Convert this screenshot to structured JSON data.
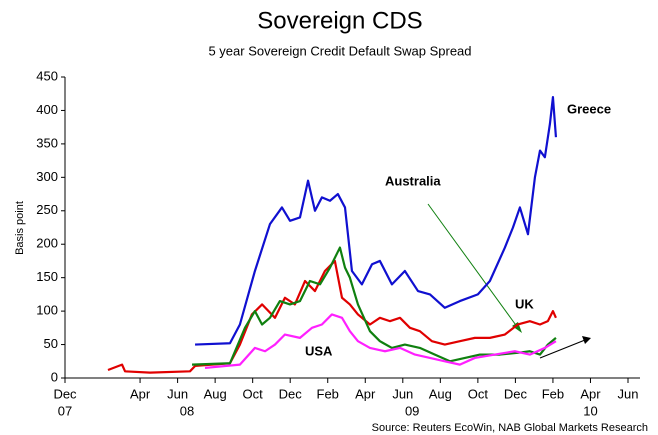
{
  "chart_data": {
    "type": "line",
    "title": "Sovereign CDS",
    "subtitle": "5 year Sovereign Credit Default Swap Spread",
    "y_label": "Basis point",
    "source": "Source: Reuters EcoWin, NAB Global Markets Research",
    "xlim": [
      0,
      30
    ],
    "xticks": [
      {
        "value": 0,
        "label": "Dec"
      },
      {
        "value": 4,
        "label": "Apr"
      },
      {
        "value": 6,
        "label": "Jun"
      },
      {
        "value": 8,
        "label": "Aug"
      },
      {
        "value": 10,
        "label": "Oct"
      },
      {
        "value": 12,
        "label": "Dec"
      },
      {
        "value": 14,
        "label": "Feb"
      },
      {
        "value": 16,
        "label": "Apr"
      },
      {
        "value": 18,
        "label": "Jun"
      },
      {
        "value": 20,
        "label": "Aug"
      },
      {
        "value": 22,
        "label": "Oct"
      },
      {
        "value": 24,
        "label": "Dec"
      },
      {
        "value": 26,
        "label": "Feb"
      },
      {
        "value": 28,
        "label": "Apr"
      },
      {
        "value": 30,
        "label": "Jun"
      }
    ],
    "year_labels": [
      {
        "value": 0,
        "label": "07"
      },
      {
        "value": 6.5,
        "label": "08"
      },
      {
        "value": 18.5,
        "label": "09"
      },
      {
        "value": 28,
        "label": "10"
      }
    ],
    "ylim": [
      0,
      450
    ],
    "yticks": [
      0,
      50,
      100,
      150,
      200,
      250,
      300,
      350,
      400,
      450
    ],
    "grid": false,
    "series": [
      {
        "name": "Greece",
        "color": "#1010d0",
        "x": [
          6.93,
          8.79,
          9.32,
          10.12,
          10.92,
          11.56,
          11.99,
          12.52,
          12.95,
          13.32,
          13.69,
          14.12,
          14.54,
          14.92,
          15.29,
          15.82,
          16.36,
          16.78,
          17.42,
          18.11,
          18.81,
          19.45,
          20.24,
          21.04,
          22.0,
          22.64,
          23.44,
          23.87,
          24.24,
          24.67,
          25.04,
          25.31,
          25.57,
          25.84,
          26.0,
          26.16
        ],
        "values": [
          50,
          52,
          80,
          160,
          230,
          255,
          235,
          240,
          295,
          250,
          270,
          265,
          275,
          255,
          160,
          140,
          170,
          175,
          140,
          160,
          130,
          125,
          105,
          115,
          125,
          145,
          195,
          225,
          255,
          215,
          300,
          340,
          330,
          380,
          420,
          360
        ]
      },
      {
        "name": "UK",
        "color": "#e00000",
        "x": [
          2.29,
          3.04,
          3.2,
          4.53,
          6.66,
          6.93,
          8.79,
          9.32,
          9.96,
          10.5,
          11.19,
          11.72,
          12.25,
          12.79,
          13.32,
          13.85,
          14.38,
          14.76,
          15.18,
          15.61,
          16.25,
          16.78,
          17.31,
          17.85,
          18.38,
          18.91,
          19.55,
          20.24,
          21.04,
          21.84,
          22.64,
          23.44,
          24.13,
          24.77,
          25.31,
          25.73,
          26.0,
          26.16
        ],
        "values": [
          12,
          20,
          10,
          8,
          10,
          18,
          22,
          50,
          95,
          110,
          90,
          120,
          110,
          145,
          130,
          160,
          175,
          120,
          110,
          95,
          80,
          90,
          85,
          90,
          75,
          70,
          55,
          50,
          55,
          60,
          60,
          65,
          80,
          85,
          80,
          85,
          100,
          90
        ]
      },
      {
        "name": "Australia",
        "color": "#108010",
        "x": [
          6.77,
          8.79,
          9.59,
          10.12,
          10.5,
          10.92,
          11.45,
          11.99,
          12.52,
          13.05,
          13.59,
          14.12,
          14.65,
          14.92,
          15.18,
          15.61,
          16.25,
          16.78,
          17.42,
          18.11,
          18.91,
          19.71,
          20.51,
          21.31,
          22.11,
          23.18,
          24.24,
          24.77,
          25.31,
          25.73,
          26.16
        ],
        "values": [
          20,
          22,
          75,
          100,
          80,
          90,
          115,
          110,
          115,
          145,
          140,
          165,
          195,
          165,
          150,
          110,
          70,
          55,
          45,
          50,
          45,
          35,
          25,
          30,
          35,
          35,
          38,
          40,
          35,
          50,
          60
        ]
      },
      {
        "name": "USA",
        "color": "#ff20ff",
        "x": [
          7.46,
          9.32,
          10.12,
          10.66,
          11.19,
          11.72,
          12.52,
          13.16,
          13.69,
          14.22,
          14.76,
          15.18,
          15.61,
          16.25,
          17.05,
          17.85,
          18.65,
          19.45,
          20.24,
          21.04,
          21.84,
          22.91,
          23.97,
          24.77,
          25.57,
          26.16
        ],
        "values": [
          15,
          20,
          45,
          40,
          50,
          65,
          60,
          75,
          80,
          95,
          90,
          70,
          55,
          45,
          40,
          45,
          35,
          30,
          25,
          20,
          30,
          35,
          40,
          35,
          45,
          55
        ]
      }
    ]
  }
}
